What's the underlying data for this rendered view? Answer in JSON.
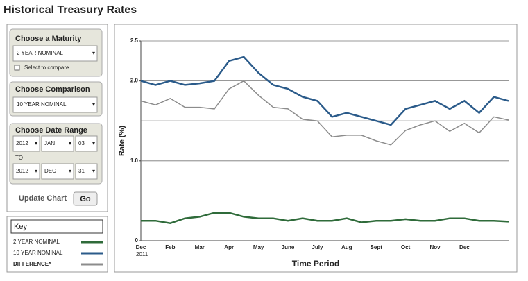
{
  "header": {
    "title": "Historical Treasury Rates"
  },
  "controls": {
    "maturity": {
      "title": "Choose a Maturity",
      "selected": "2 YEAR NOMINAL",
      "checkbox_label": "Select to compare"
    },
    "comparison": {
      "title": "Choose Comparison",
      "selected": "10 YEAR NOMINAL"
    },
    "date_range": {
      "title": "Choose Date Range",
      "from": [
        "2012",
        "JAN",
        "03"
      ],
      "separator": "TO",
      "to": [
        "2012",
        "DEC",
        "31"
      ]
    },
    "update_label": "Update Chart",
    "go": "Go"
  },
  "key": {
    "title": "Key"
  },
  "chart_data": {
    "type": "line",
    "x_label": "Time Period",
    "y_label": "Rate (%)",
    "x_sub_label": "2011",
    "categories": [
      "Dec",
      null,
      "Feb",
      null,
      "Mar",
      null,
      "Apr",
      null,
      "May",
      null,
      "June",
      null,
      "July",
      null,
      "Aug",
      null,
      "Sept",
      null,
      "Oct",
      null,
      "Nov",
      null,
      "Dec",
      null,
      null,
      null
    ],
    "ylim": [
      0,
      2.5
    ],
    "yticks": [
      0,
      {
        "value": 1,
        "label": "1.0"
      },
      {
        "value": 2,
        "label": "2.0"
      },
      2.5
    ],
    "ygrid": [
      0.5,
      1,
      1.5,
      2,
      2.5
    ],
    "series": [
      {
        "name": "2 YEAR NOMINAL",
        "color": "#2f6b3a",
        "values": [
          0.25,
          0.25,
          0.22,
          0.28,
          0.3,
          0.35,
          0.35,
          0.3,
          0.28,
          0.28,
          0.25,
          0.28,
          0.25,
          0.25,
          0.28,
          0.23,
          0.25,
          0.25,
          0.27,
          0.25,
          0.25,
          0.28,
          0.28,
          0.25,
          0.25,
          0.24
        ]
      },
      {
        "name": "10 YEAR NOMINAL",
        "color": "#2b5b8a",
        "values": [
          2.0,
          1.95,
          2.0,
          1.95,
          1.97,
          2.0,
          2.25,
          2.3,
          2.1,
          1.95,
          1.9,
          1.8,
          1.75,
          1.55,
          1.6,
          1.55,
          1.5,
          1.45,
          1.65,
          1.7,
          1.75,
          1.65,
          1.75,
          1.6,
          1.8,
          1.75
        ]
      },
      {
        "name": "DIFFERENCE*",
        "color": "#8c8c8c",
        "values": [
          1.75,
          1.7,
          1.78,
          1.67,
          1.67,
          1.65,
          1.9,
          2.0,
          1.82,
          1.67,
          1.65,
          1.52,
          1.5,
          1.3,
          1.32,
          1.32,
          1.25,
          1.2,
          1.38,
          1.45,
          1.5,
          1.37,
          1.47,
          1.35,
          1.55,
          1.51
        ]
      }
    ]
  }
}
